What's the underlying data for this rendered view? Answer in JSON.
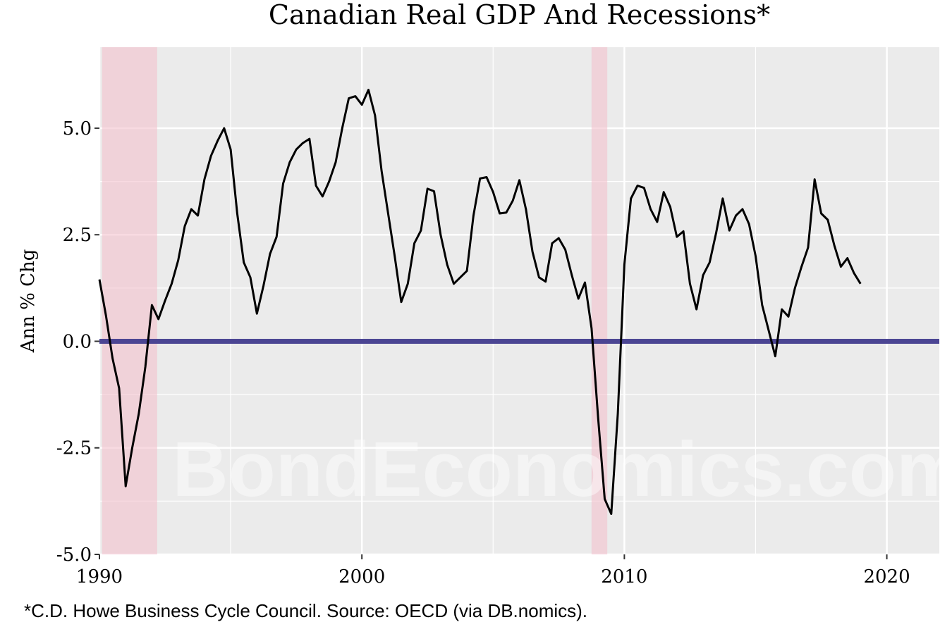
{
  "chart_data": {
    "type": "line",
    "title": "Canadian Real GDP And Recessions*",
    "xlabel": "",
    "ylabel": "Ann % Chg",
    "caption": "*C.D. Howe Business Cycle Council. Source: OECD (via DB.nomics).",
    "watermark": "BondEconomics.com",
    "xlim": [
      1990,
      2022
    ],
    "ylim": [
      -5.0,
      6.9
    ],
    "x_ticks": [
      1990,
      2000,
      2010,
      2020
    ],
    "x_tick_labels": [
      "1990",
      "2000",
      "2010",
      "2020"
    ],
    "y_ticks": [
      -5.0,
      -2.5,
      0.0,
      2.5,
      5.0
    ],
    "y_tick_labels": [
      "-5.0",
      "-2.5",
      "0.0",
      "2.5",
      "5.0"
    ],
    "grid": true,
    "colors": {
      "panel": "#ebebeb",
      "grid": "#ffffff",
      "series": "#000000",
      "zero_line": "#4b4593",
      "recession": "#f4c2cd"
    },
    "recessions": [
      {
        "start": 1990.1,
        "end": 1992.2
      },
      {
        "start": 2008.75,
        "end": 2009.35
      }
    ],
    "zero_line": 0.0,
    "series": [
      {
        "x": [
          1990.0,
          1990.25,
          1990.5,
          1990.75,
          1991.0,
          1991.25,
          1991.5,
          1991.75,
          1992.0,
          1992.25,
          1992.5,
          1992.75,
          1993.0,
          1993.25,
          1993.5,
          1993.75,
          1994.0,
          1994.25,
          1994.5,
          1994.75,
          1995.0,
          1995.25,
          1995.5,
          1995.75,
          1996.0,
          1996.25,
          1996.5,
          1996.75,
          1997.0,
          1997.25,
          1997.5,
          1997.75,
          1998.0,
          1998.25,
          1998.5,
          1998.75,
          1999.0,
          1999.25,
          1999.5,
          1999.75,
          2000.0,
          2000.25,
          2000.5,
          2000.75,
          2001.0,
          2001.25,
          2001.5,
          2001.75,
          2002.0,
          2002.25,
          2002.5,
          2002.75,
          2003.0,
          2003.25,
          2003.5,
          2003.75,
          2004.0,
          2004.25,
          2004.5,
          2004.75,
          2005.0,
          2005.25,
          2005.5,
          2005.75,
          2006.0,
          2006.25,
          2006.5,
          2006.75,
          2007.0,
          2007.25,
          2007.5,
          2007.75,
          2008.0,
          2008.25,
          2008.5,
          2008.75,
          2009.0,
          2009.25,
          2009.5,
          2009.75,
          2010.0,
          2010.25,
          2010.5,
          2010.75,
          2011.0,
          2011.25,
          2011.5,
          2011.75,
          2012.0,
          2012.25,
          2012.5,
          2012.75,
          2013.0,
          2013.25,
          2013.5,
          2013.75,
          2014.0,
          2014.25,
          2014.5,
          2014.75,
          2015.0,
          2015.25,
          2015.5,
          2015.75,
          2016.0,
          2016.25,
          2016.5,
          2016.75,
          2017.0,
          2017.25,
          2017.5,
          2017.75,
          2018.0,
          2018.25,
          2018.5,
          2018.75,
          2019.0
        ],
        "y": [
          1.45,
          0.6,
          -0.4,
          -1.1,
          -3.4,
          -2.5,
          -1.7,
          -0.6,
          0.85,
          0.52,
          0.95,
          1.35,
          1.9,
          2.7,
          3.1,
          2.95,
          3.8,
          4.35,
          4.7,
          5.0,
          4.5,
          3.0,
          1.85,
          1.5,
          0.65,
          1.3,
          2.05,
          2.45,
          3.7,
          4.2,
          4.5,
          4.65,
          4.75,
          3.65,
          3.4,
          3.75,
          4.2,
          5.0,
          5.7,
          5.75,
          5.55,
          5.9,
          5.3,
          4.0,
          3.0,
          2.0,
          0.92,
          1.35,
          2.3,
          2.6,
          3.58,
          3.52,
          2.5,
          1.8,
          1.35,
          1.5,
          1.65,
          2.95,
          3.82,
          3.85,
          3.5,
          3.0,
          3.02,
          3.3,
          3.78,
          3.1,
          2.1,
          1.5,
          1.4,
          2.3,
          2.42,
          2.15,
          1.55,
          1.0,
          1.38,
          0.3,
          -1.8,
          -3.7,
          -4.05,
          -1.7,
          1.8,
          3.35,
          3.65,
          3.6,
          3.1,
          2.8,
          3.5,
          3.15,
          2.45,
          2.58,
          1.35,
          0.75,
          1.55,
          1.85,
          2.55,
          3.35,
          2.6,
          2.95,
          3.1,
          2.75,
          2.0,
          0.85,
          0.25,
          -0.35,
          0.75,
          0.58,
          1.25,
          1.75,
          2.2,
          3.8,
          3.0,
          2.85,
          2.25,
          1.75,
          1.95,
          1.6,
          1.35
        ]
      }
    ]
  }
}
